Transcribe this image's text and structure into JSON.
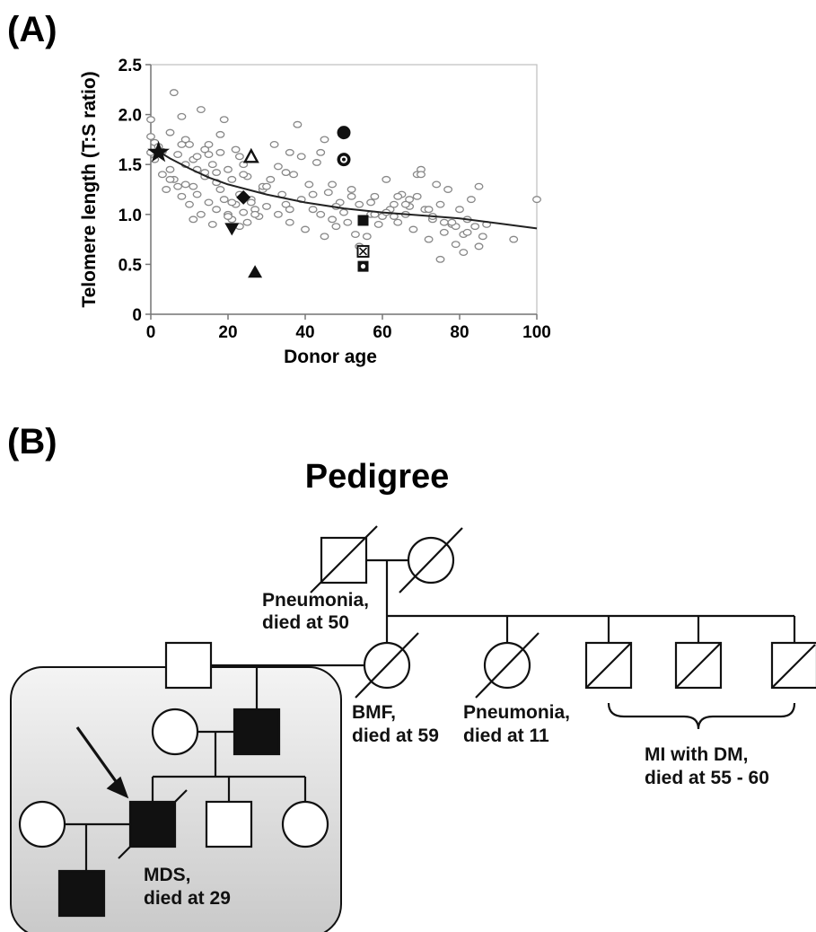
{
  "panel_a": {
    "label": "(A)"
  },
  "panel_b": {
    "label": "(B)",
    "title": "Pedigree"
  },
  "chart_data": {
    "type": "scatter",
    "xlabel": "Donor age",
    "ylabel": "Telomere length (T:S ratio)",
    "xlim": [
      0,
      100
    ],
    "ylim": [
      0,
      2.5
    ],
    "xticks": [
      "0",
      "20",
      "40",
      "60",
      "80",
      "100"
    ],
    "yticks": [
      "0",
      "0.5",
      "1.0",
      "1.5",
      "2.0",
      "2.5"
    ],
    "grid": false,
    "legend": "none",
    "trend_line": {
      "x": [
        2,
        5,
        10,
        15,
        20,
        25,
        30,
        40,
        50,
        60,
        70,
        80,
        90,
        100
      ],
      "y": [
        1.63,
        1.56,
        1.46,
        1.37,
        1.3,
        1.25,
        1.2,
        1.12,
        1.06,
        1.02,
        0.99,
        0.96,
        0.91,
        0.86
      ]
    },
    "controls": {
      "x": [
        0,
        0,
        0,
        1,
        1,
        2,
        3,
        3,
        4,
        5,
        5,
        6,
        6,
        7,
        7,
        8,
        8,
        9,
        9,
        10,
        10,
        11,
        11,
        12,
        12,
        13,
        13,
        14,
        14,
        15,
        15,
        16,
        16,
        17,
        17,
        18,
        18,
        19,
        19,
        20,
        20,
        21,
        21,
        22,
        22,
        23,
        23,
        24,
        24,
        25,
        25,
        26,
        26,
        27,
        28,
        29,
        30,
        31,
        32,
        33,
        34,
        35,
        36,
        37,
        38,
        39,
        40,
        41,
        42,
        43,
        44,
        45,
        46,
        47,
        48,
        49,
        50,
        51,
        52,
        53,
        54,
        55,
        56,
        57,
        58,
        59,
        60,
        61,
        62,
        63,
        64,
        65,
        66,
        67,
        68,
        69,
        70,
        71,
        72,
        73,
        74,
        75,
        76,
        77,
        78,
        79,
        80,
        81,
        82,
        83,
        84,
        85,
        86,
        87,
        94,
        100,
        5,
        8,
        11,
        14,
        17,
        20,
        23,
        26,
        29,
        33,
        36,
        39,
        42,
        45,
        48,
        54,
        57,
        61,
        64,
        67,
        70,
        73,
        76,
        79,
        82,
        12,
        18,
        24,
        30,
        36,
        44,
        52,
        58,
        66,
        72,
        78,
        85,
        9,
        15,
        21,
        27,
        35,
        47,
        63,
        69,
        75,
        81
      ],
      "y": [
        1.95,
        1.78,
        1.62,
        1.72,
        1.55,
        1.68,
        1.4,
        1.63,
        1.25,
        1.82,
        1.45,
        2.22,
        1.35,
        1.28,
        1.6,
        1.98,
        1.18,
        1.75,
        1.3,
        1.7,
        1.1,
        1.55,
        0.95,
        1.45,
        1.2,
        2.05,
        1.0,
        1.65,
        1.38,
        1.7,
        1.12,
        1.5,
        0.9,
        1.42,
        1.05,
        1.8,
        1.25,
        1.95,
        1.15,
        1.45,
        1.0,
        1.35,
        0.95,
        1.65,
        1.1,
        1.2,
        0.88,
        1.5,
        1.02,
        1.38,
        0.92,
        1.15,
        1.55,
        1.05,
        0.98,
        1.25,
        1.08,
        1.35,
        1.7,
        1.48,
        1.2,
        1.1,
        1.62,
        1.4,
        1.9,
        1.15,
        0.85,
        1.3,
        1.05,
        1.52,
        1.0,
        1.75,
        1.22,
        0.95,
        0.88,
        1.12,
        1.02,
        0.92,
        1.25,
        0.8,
        1.1,
        0.95,
        0.78,
        1.0,
        1.18,
        0.9,
        0.98,
        1.35,
        1.05,
        1.1,
        0.92,
        1.2,
        1.0,
        1.15,
        0.85,
        1.4,
        1.45,
        1.05,
        0.75,
        0.95,
        1.3,
        1.1,
        0.82,
        1.25,
        0.9,
        0.7,
        1.05,
        0.8,
        0.95,
        1.15,
        0.88,
        1.28,
        0.78,
        0.9,
        0.75,
        1.15,
        1.35,
        1.7,
        1.28,
        1.42,
        1.32,
        0.98,
        1.58,
        1.12,
        1.28,
        1.0,
        0.92,
        1.58,
        1.2,
        0.78,
        1.08,
        0.68,
        1.12,
        1.02,
        1.18,
        1.08,
        1.4,
        0.98,
        0.92,
        0.88,
        0.82,
        1.58,
        1.62,
        1.4,
        1.28,
        1.05,
        1.62,
        1.18,
        1.0,
        1.1,
        1.05,
        0.92,
        0.68,
        1.5,
        1.6,
        1.12,
        1.0,
        1.42,
        1.3,
        0.98,
        1.18,
        0.55,
        0.62
      ]
    },
    "family_members": [
      {
        "marker": "star",
        "x": 2,
        "y": 1.62
      },
      {
        "marker": "filled-circle",
        "x": 50,
        "y": 1.82
      },
      {
        "marker": "ringed-circle",
        "x": 50,
        "y": 1.55
      },
      {
        "marker": "open-triangle-up",
        "x": 26,
        "y": 1.58
      },
      {
        "marker": "filled-diamond",
        "x": 24,
        "y": 1.17
      },
      {
        "marker": "filled-triangle-down",
        "x": 21,
        "y": 0.86
      },
      {
        "marker": "filled-triangle-up",
        "x": 27,
        "y": 0.42
      },
      {
        "marker": "filled-square",
        "x": 55,
        "y": 0.94
      },
      {
        "marker": "crossed-square",
        "x": 55,
        "y": 0.63
      },
      {
        "marker": "dotted-square",
        "x": 55,
        "y": 0.48
      }
    ]
  },
  "pedigree": {
    "annotations": [
      {
        "id": "grandfather",
        "lines": [
          "Pneumonia,",
          "died at 50"
        ]
      },
      {
        "id": "grandmother",
        "lines": [
          "BMF,",
          "died at 59"
        ]
      },
      {
        "id": "aunt",
        "lines": [
          "Pneumonia,",
          "died at 11"
        ]
      },
      {
        "id": "uncles",
        "lines": [
          "MI with DM,",
          "died at 55 - 60"
        ]
      },
      {
        "id": "proband",
        "lines": [
          "MDS,",
          "died at 29"
        ]
      }
    ],
    "colors": {
      "affected": "#111111",
      "box_top": "#f4f4f4",
      "box_bottom": "#c9c9c9"
    }
  }
}
